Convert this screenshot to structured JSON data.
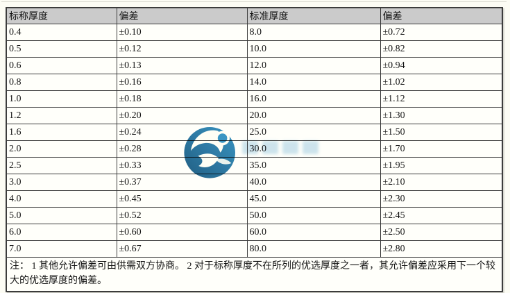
{
  "table": {
    "headers": [
      "标称厚度",
      "偏差",
      "标准厚度",
      "偏差"
    ],
    "rows": [
      [
        "0.4",
        "±0.10",
        "8.0",
        "±0.72"
      ],
      [
        "0.5",
        "±0.12",
        "10.0",
        "±0.82"
      ],
      [
        "0.6",
        "±0.13",
        "12.0",
        "±0.94"
      ],
      [
        "0.8",
        "±0.16",
        "14.0",
        "±1.02"
      ],
      [
        "1.0",
        "±0.18",
        "16.0",
        "±1.12"
      ],
      [
        "1.2",
        "±0.20",
        "20.0",
        "±1.30"
      ],
      [
        "1.6",
        "±0.24",
        "25.0",
        "±1.50"
      ],
      [
        "2.0",
        "±0.28",
        "30.0",
        "±1.70"
      ],
      [
        "2.5",
        "±0.33",
        "35.0",
        "±1.95"
      ],
      [
        "3.0",
        "±0.37",
        "40.0",
        "±2.10"
      ],
      [
        "4.0",
        "±0.45",
        "45.0",
        "±2.30"
      ],
      [
        "5.0",
        "±0.52",
        "50.0",
        "±2.45"
      ],
      [
        "6.0",
        "±0.60",
        "60.0",
        "±2.50"
      ],
      [
        "7.0",
        "±0.67",
        "80.0",
        "±2.80"
      ]
    ],
    "note": "注：  1 其他允许偏差可由供需双方协商。  2 对于标称厚度不在所列的优选厚度之一者，其允许偏差应采用下一个较大的优选厚度的偏差。"
  },
  "watermark": {
    "logo": "blue-circle-figure-logo"
  },
  "colors": {
    "header_bg": "#cbcbcb",
    "border": "#3c3c3c",
    "page_bg": "#fcfcf4",
    "cell_bg": "#fffffa",
    "logo_blue_dark": "#15567f",
    "logo_blue_light": "#2f8fc4",
    "watermark_text_blue": "#9ecbe4"
  }
}
